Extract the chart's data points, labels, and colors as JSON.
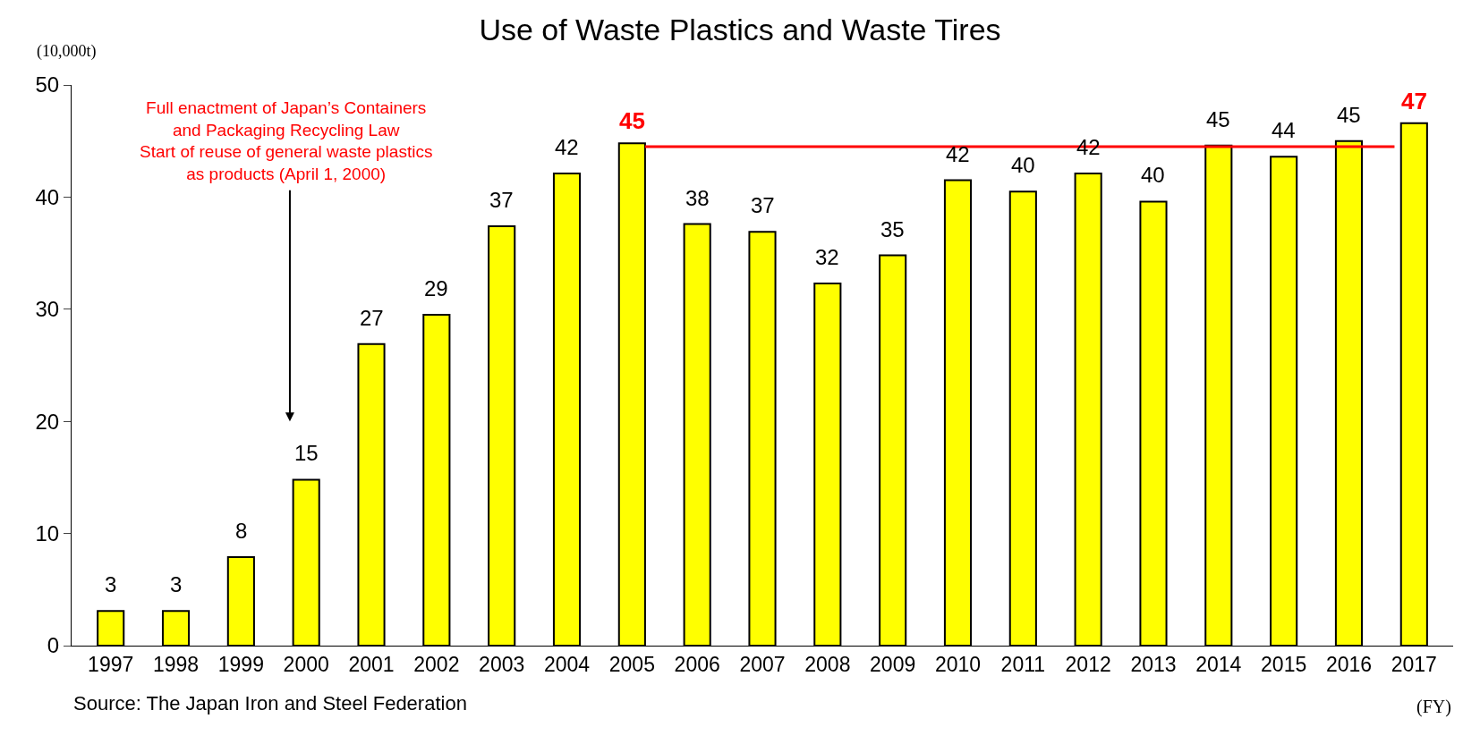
{
  "chart_data": {
    "type": "bar",
    "title": "Use of Waste Plastics and Waste Tires",
    "ylabel": "(10,000t)",
    "xlabel": "(FY)",
    "categories": [
      "1997",
      "1998",
      "1999",
      "2000",
      "2001",
      "2002",
      "2003",
      "2004",
      "2005",
      "2006",
      "2007",
      "2008",
      "2009",
      "2010",
      "2011",
      "2012",
      "2013",
      "2014",
      "2015",
      "2016",
      "2017"
    ],
    "values": [
      3.1,
      3.1,
      7.9,
      14.8,
      26.9,
      29.5,
      37.4,
      42.1,
      44.8,
      37.6,
      36.9,
      32.3,
      34.8,
      41.5,
      40.5,
      42.1,
      39.6,
      44.6,
      43.6,
      45.0,
      46.6
    ],
    "value_labels": [
      "3",
      "3",
      "8",
      "15",
      "27",
      "29",
      "37",
      "42",
      null,
      "38",
      "37",
      "32",
      "35",
      "42",
      "40",
      "42",
      "40",
      "45",
      "44",
      "45",
      null
    ],
    "color": "#ffff00",
    "ylim": [
      0,
      50
    ],
    "yticks": [
      0,
      10,
      20,
      30,
      40,
      50
    ],
    "legend": false,
    "ref_lines": [
      {
        "axis": "y",
        "value": 44.5,
        "color": "#ff0000",
        "line_style": "solid"
      }
    ],
    "annotations": [
      {
        "text": "45",
        "x": "2005",
        "y": 44.8
      },
      {
        "text": "47",
        "x": "2017",
        "y": 46.6
      },
      "Full enactment of Japan’s Containers\nand Packaging Recycling Law\nStart of reuse of general waste plastics\nas products (April 1, 2000)",
      "Source: The Japan Iron and Steel Federation"
    ]
  }
}
